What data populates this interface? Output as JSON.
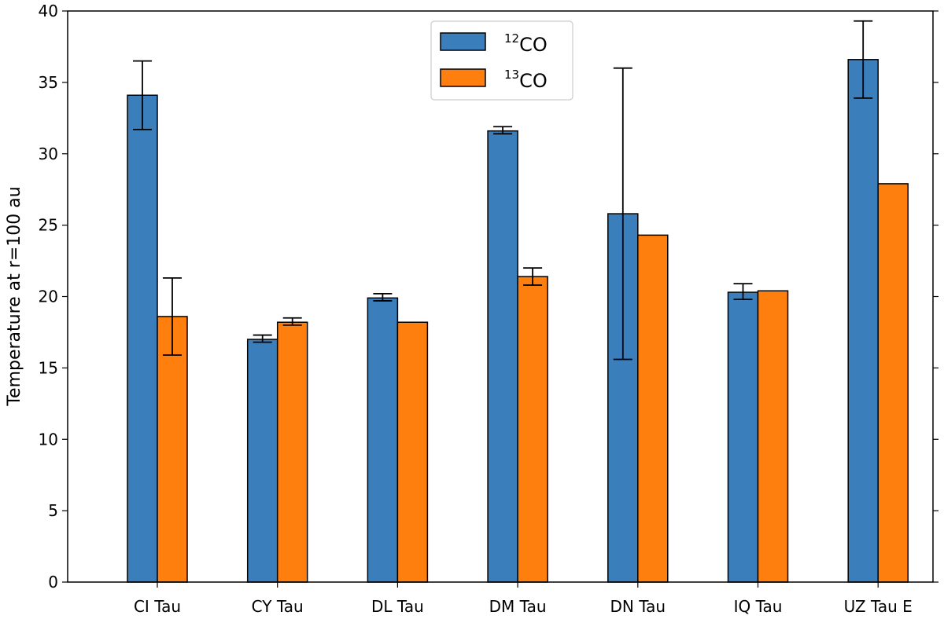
{
  "chart_data": {
    "type": "bar",
    "title": "",
    "xlabel": "",
    "ylabel": "Temperature at r=100 au",
    "ylim": [
      0,
      40
    ],
    "yticks": [
      0,
      5,
      10,
      15,
      20,
      25,
      30,
      35,
      40
    ],
    "categories": [
      "CI Tau",
      "CY Tau",
      "DL Tau",
      "DM Tau",
      "DN Tau",
      "IQ Tau",
      "UZ Tau E"
    ],
    "series": [
      {
        "name": "12CO",
        "legend_sup": "12",
        "legend_base": "CO",
        "color": "#3a7ebb",
        "values": [
          34.1,
          17.0,
          19.9,
          31.6,
          25.8,
          20.3,
          36.6
        ],
        "err_low": [
          31.7,
          16.8,
          19.7,
          31.4,
          15.6,
          19.8,
          33.9
        ],
        "err_high": [
          36.5,
          17.3,
          20.2,
          31.9,
          36.0,
          20.9,
          39.3
        ]
      },
      {
        "name": "13CO",
        "legend_sup": "13",
        "legend_base": "CO",
        "color": "#ff7f0e",
        "values": [
          18.6,
          18.2,
          18.2,
          21.4,
          24.3,
          20.4,
          27.9
        ],
        "err_low": [
          15.9,
          18.0,
          null,
          20.8,
          null,
          null,
          null
        ],
        "err_high": [
          21.3,
          18.5,
          null,
          22.0,
          null,
          null,
          null
        ]
      }
    ],
    "legend_position": "upper-center",
    "grid": false
  }
}
